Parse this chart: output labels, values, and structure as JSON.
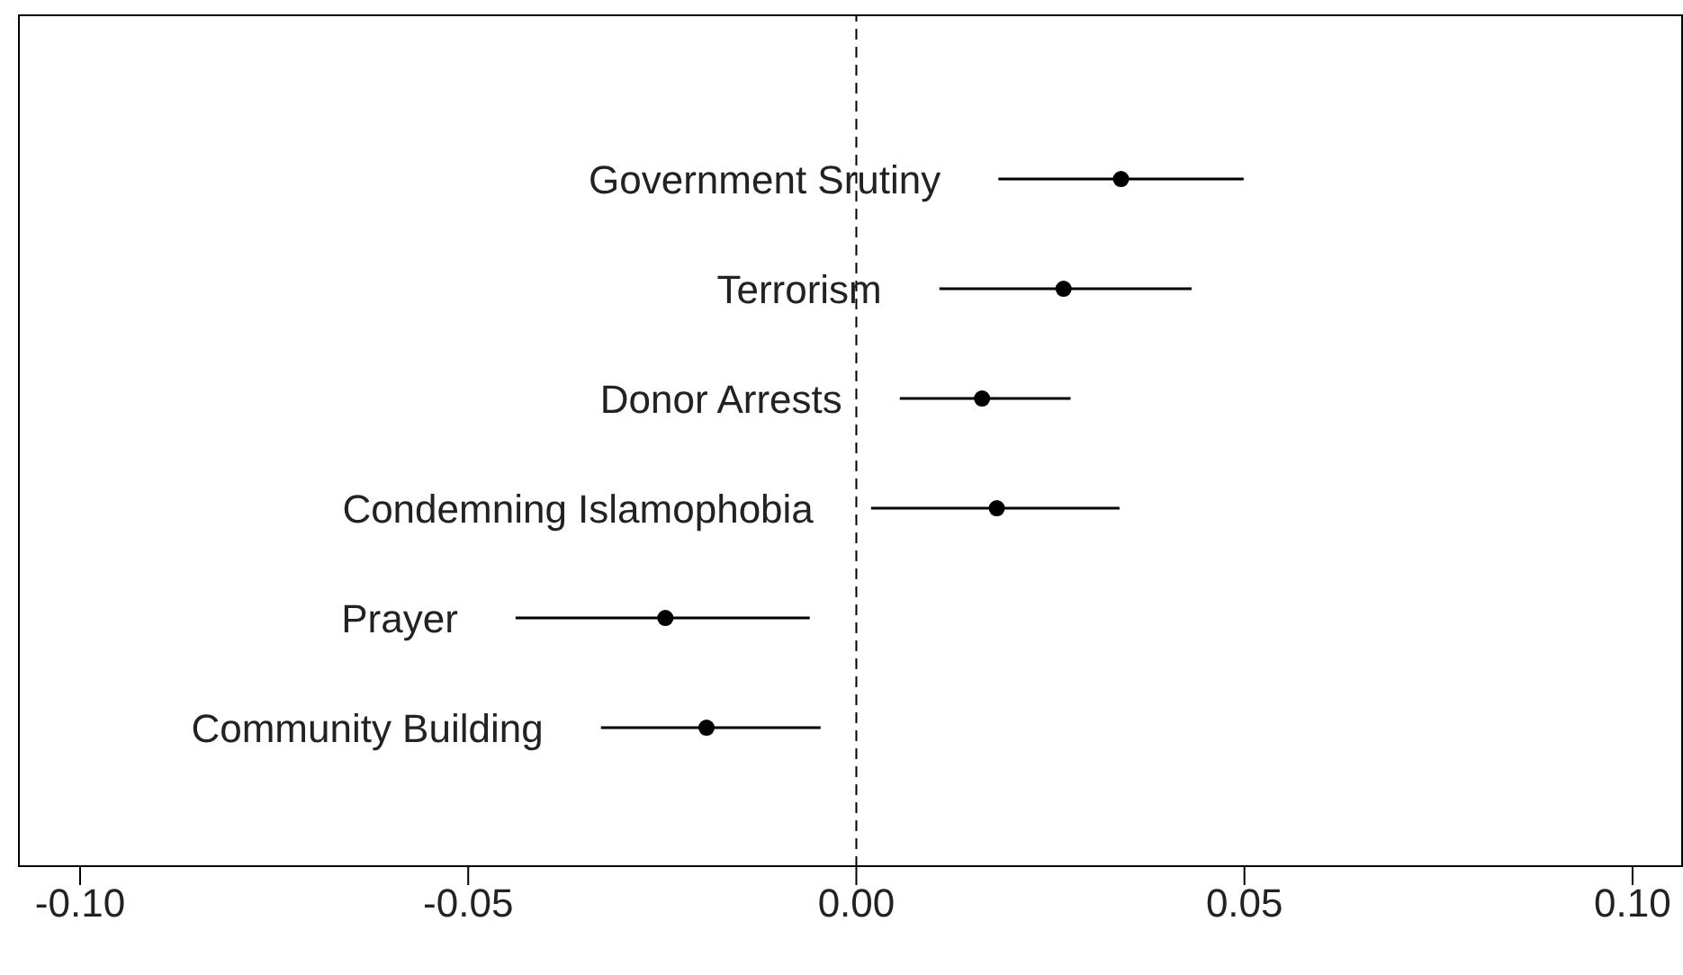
{
  "chart_data": {
    "type": "scatter",
    "orientation": "horizontal",
    "categories": [
      "Government Srutiny",
      "Terrorism",
      "Donor Arrests",
      "Condemning Islamophobia",
      "Prayer",
      "Community Building"
    ],
    "values": [
      0.0341,
      0.0267,
      0.0162,
      0.0181,
      -0.0246,
      -0.0193
    ],
    "errors": [
      [
        0.0183,
        0.0499
      ],
      [
        0.0107,
        0.0432
      ],
      [
        0.0056,
        0.0276
      ],
      [
        0.0019,
        0.0339
      ],
      [
        -0.0439,
        -0.006
      ],
      [
        -0.0329,
        -0.0046
      ]
    ],
    "color": "#000000",
    "marker": "circle",
    "grid": false,
    "xlim": [
      -0.108,
      0.1065
    ],
    "xticks": [
      {
        "value": -0.1,
        "label": "-0.10"
      },
      {
        "value": -0.05,
        "label": "-0.05"
      },
      {
        "value": 0,
        "label": "0.00"
      },
      {
        "value": 0.05,
        "label": "0.05"
      },
      {
        "value": 0.1,
        "label": "0.10"
      }
    ],
    "ref_lines": [
      {
        "axis": "x",
        "value": 0,
        "line_style": "dashed",
        "color": "#000000"
      }
    ]
  }
}
